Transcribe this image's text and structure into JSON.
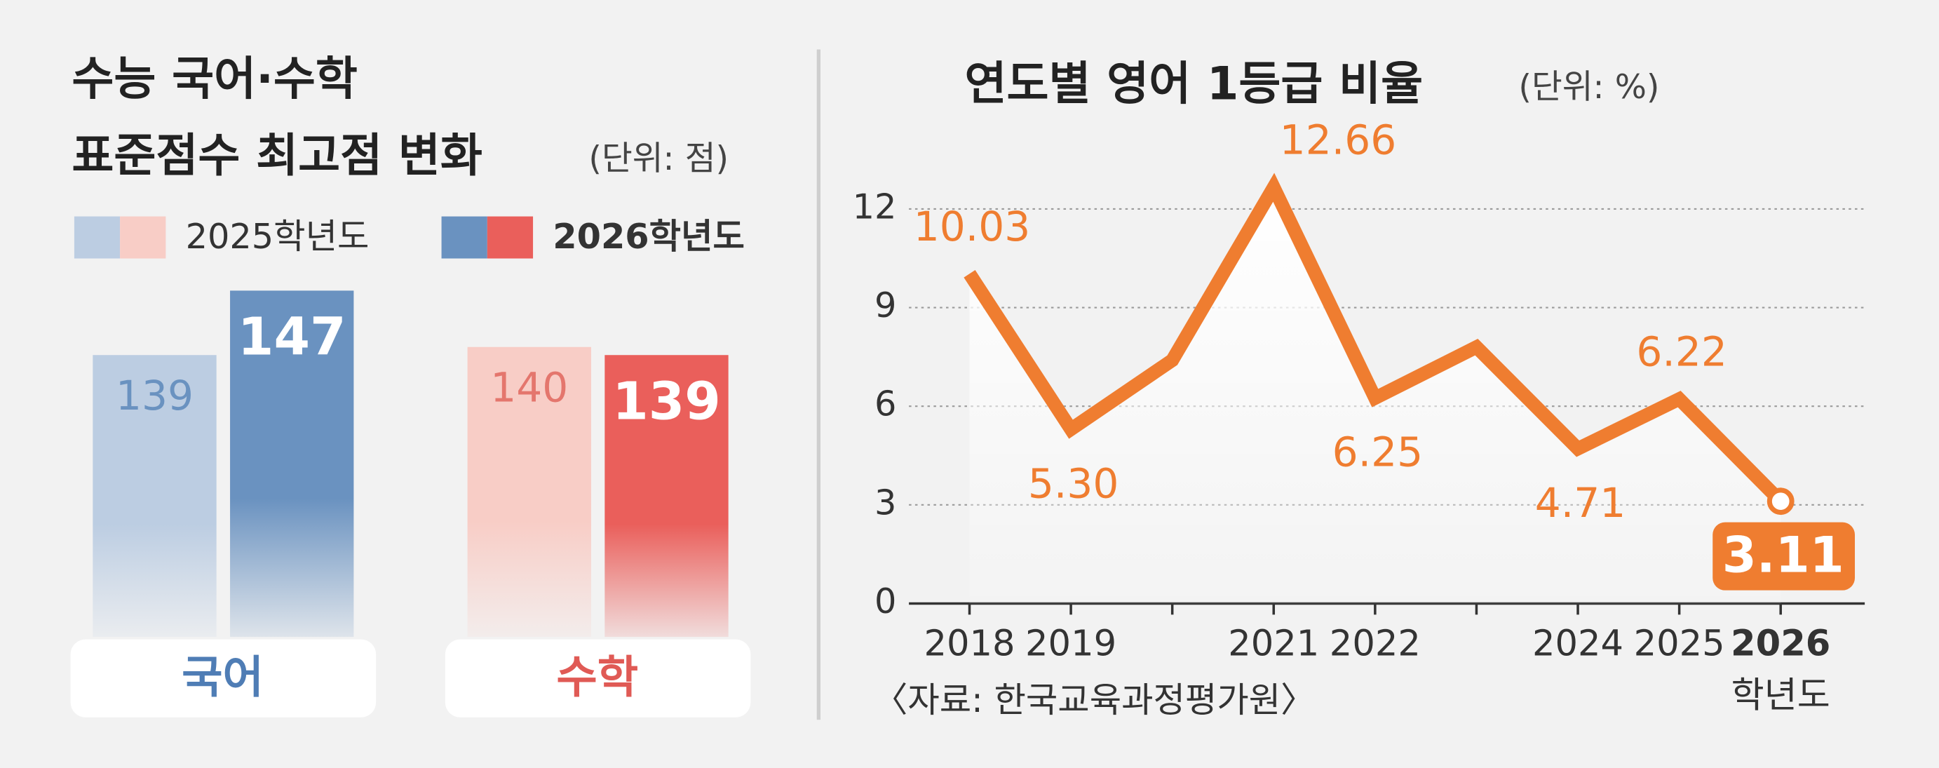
{
  "chart_data": [
    {
      "type": "bar",
      "title": [
        "수능 국어·수학",
        "표준점수 최고점 변화"
      ],
      "unit": "(단위: 점)",
      "categories": [
        "국어",
        "수학"
      ],
      "series": [
        {
          "name": "2025학년도",
          "colors": [
            "#bccde2",
            "#f8cdc6"
          ],
          "label_colors": [
            "#6a92c0",
            "#e4766d"
          ],
          "values": [
            139,
            140
          ]
        },
        {
          "name": "2026학년도",
          "colors": [
            "#6a92c0",
            "#ea5f5b"
          ],
          "label_colors": [
            "#ffffff",
            "#ffffff"
          ],
          "values": [
            147,
            139
          ]
        }
      ],
      "category_colors": [
        "#4f7db5",
        "#e05a55"
      ],
      "ylim": [
        104,
        147
      ]
    },
    {
      "type": "line",
      "title": "연도별 영어 1등급 비율",
      "unit": "(단위: %)",
      "categories": [
        "2018",
        "2019",
        null,
        "2021",
        "2022",
        null,
        "2024",
        "2025",
        "2026"
      ],
      "values": [
        10.03,
        5.3,
        7.4,
        12.66,
        6.25,
        7.8,
        4.71,
        6.22,
        3.11
      ],
      "value_labels": [
        "10.03",
        "5.30",
        null,
        "12.66",
        "6.25",
        null,
        "4.71",
        "6.22",
        "3.11"
      ],
      "color": "#ef7d30",
      "ylim": [
        0,
        12
      ],
      "yticks": [
        0,
        3,
        6,
        9,
        12
      ],
      "grid": true,
      "xlabel": "학년도",
      "source": "〈자료: 한국교육과정평가원〉"
    }
  ]
}
